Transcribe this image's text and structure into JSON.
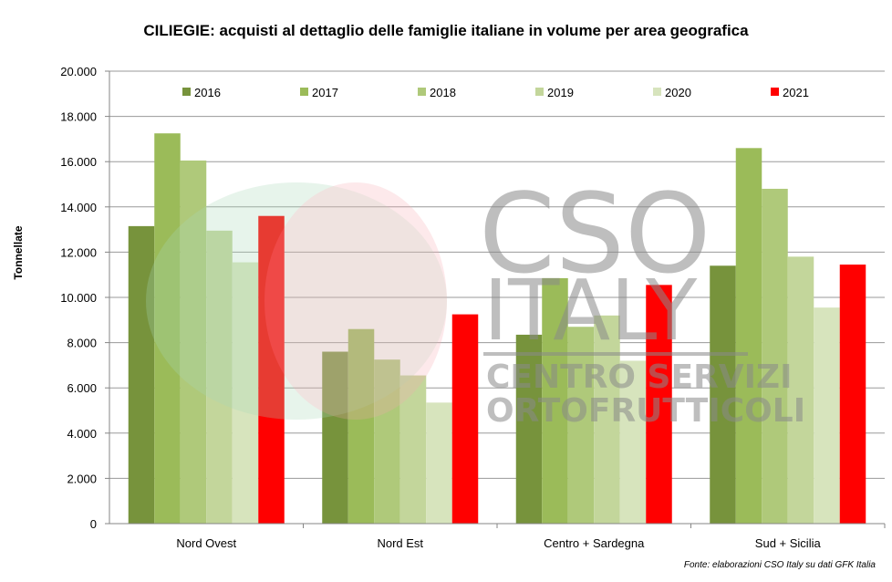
{
  "chart_data": {
    "type": "bar",
    "title": "CILIEGIE: acquisti al dettaglio delle famiglie italiane in volume per area geografica",
    "ylabel": "Tonnellate",
    "xlabel": "",
    "ylim": [
      0,
      20000
    ],
    "yticks": [
      0,
      2000,
      4000,
      6000,
      8000,
      10000,
      12000,
      14000,
      16000,
      18000,
      20000
    ],
    "ytick_labels": [
      "0",
      "2.000",
      "4.000",
      "6.000",
      "8.000",
      "10.000",
      "12.000",
      "14.000",
      "16.000",
      "18.000",
      "20.000"
    ],
    "categories": [
      "Nord Ovest",
      "Nord Est",
      "Centro + Sardegna",
      "Sud + Sicilia"
    ],
    "series": [
      {
        "name": "2016",
        "color": "#77933c",
        "values": [
          13150,
          7600,
          8350,
          11400
        ]
      },
      {
        "name": "2017",
        "color": "#9bbb59",
        "values": [
          17250,
          8600,
          10850,
          16600
        ]
      },
      {
        "name": "2018",
        "color": "#afc97a",
        "values": [
          16050,
          7250,
          8700,
          14800
        ]
      },
      {
        "name": "2019",
        "color": "#c3d69b",
        "values": [
          12950,
          6550,
          9200,
          11800
        ]
      },
      {
        "name": "2020",
        "color": "#d7e4bd",
        "values": [
          11550,
          5350,
          7200,
          9550
        ]
      },
      {
        "name": "2021",
        "color": "#ff0000",
        "values": [
          13600,
          9250,
          10550,
          11450
        ]
      }
    ],
    "legend_position": "top",
    "grid": true
  },
  "source_note": "Fonte: elaborazioni CSO Italy su dati GFK Italia",
  "watermark": {
    "line1": "CSO",
    "line2": "ITALY",
    "line3": "CENTRO SERVIZI",
    "line4": "ORTOFRUTTICOLI"
  }
}
